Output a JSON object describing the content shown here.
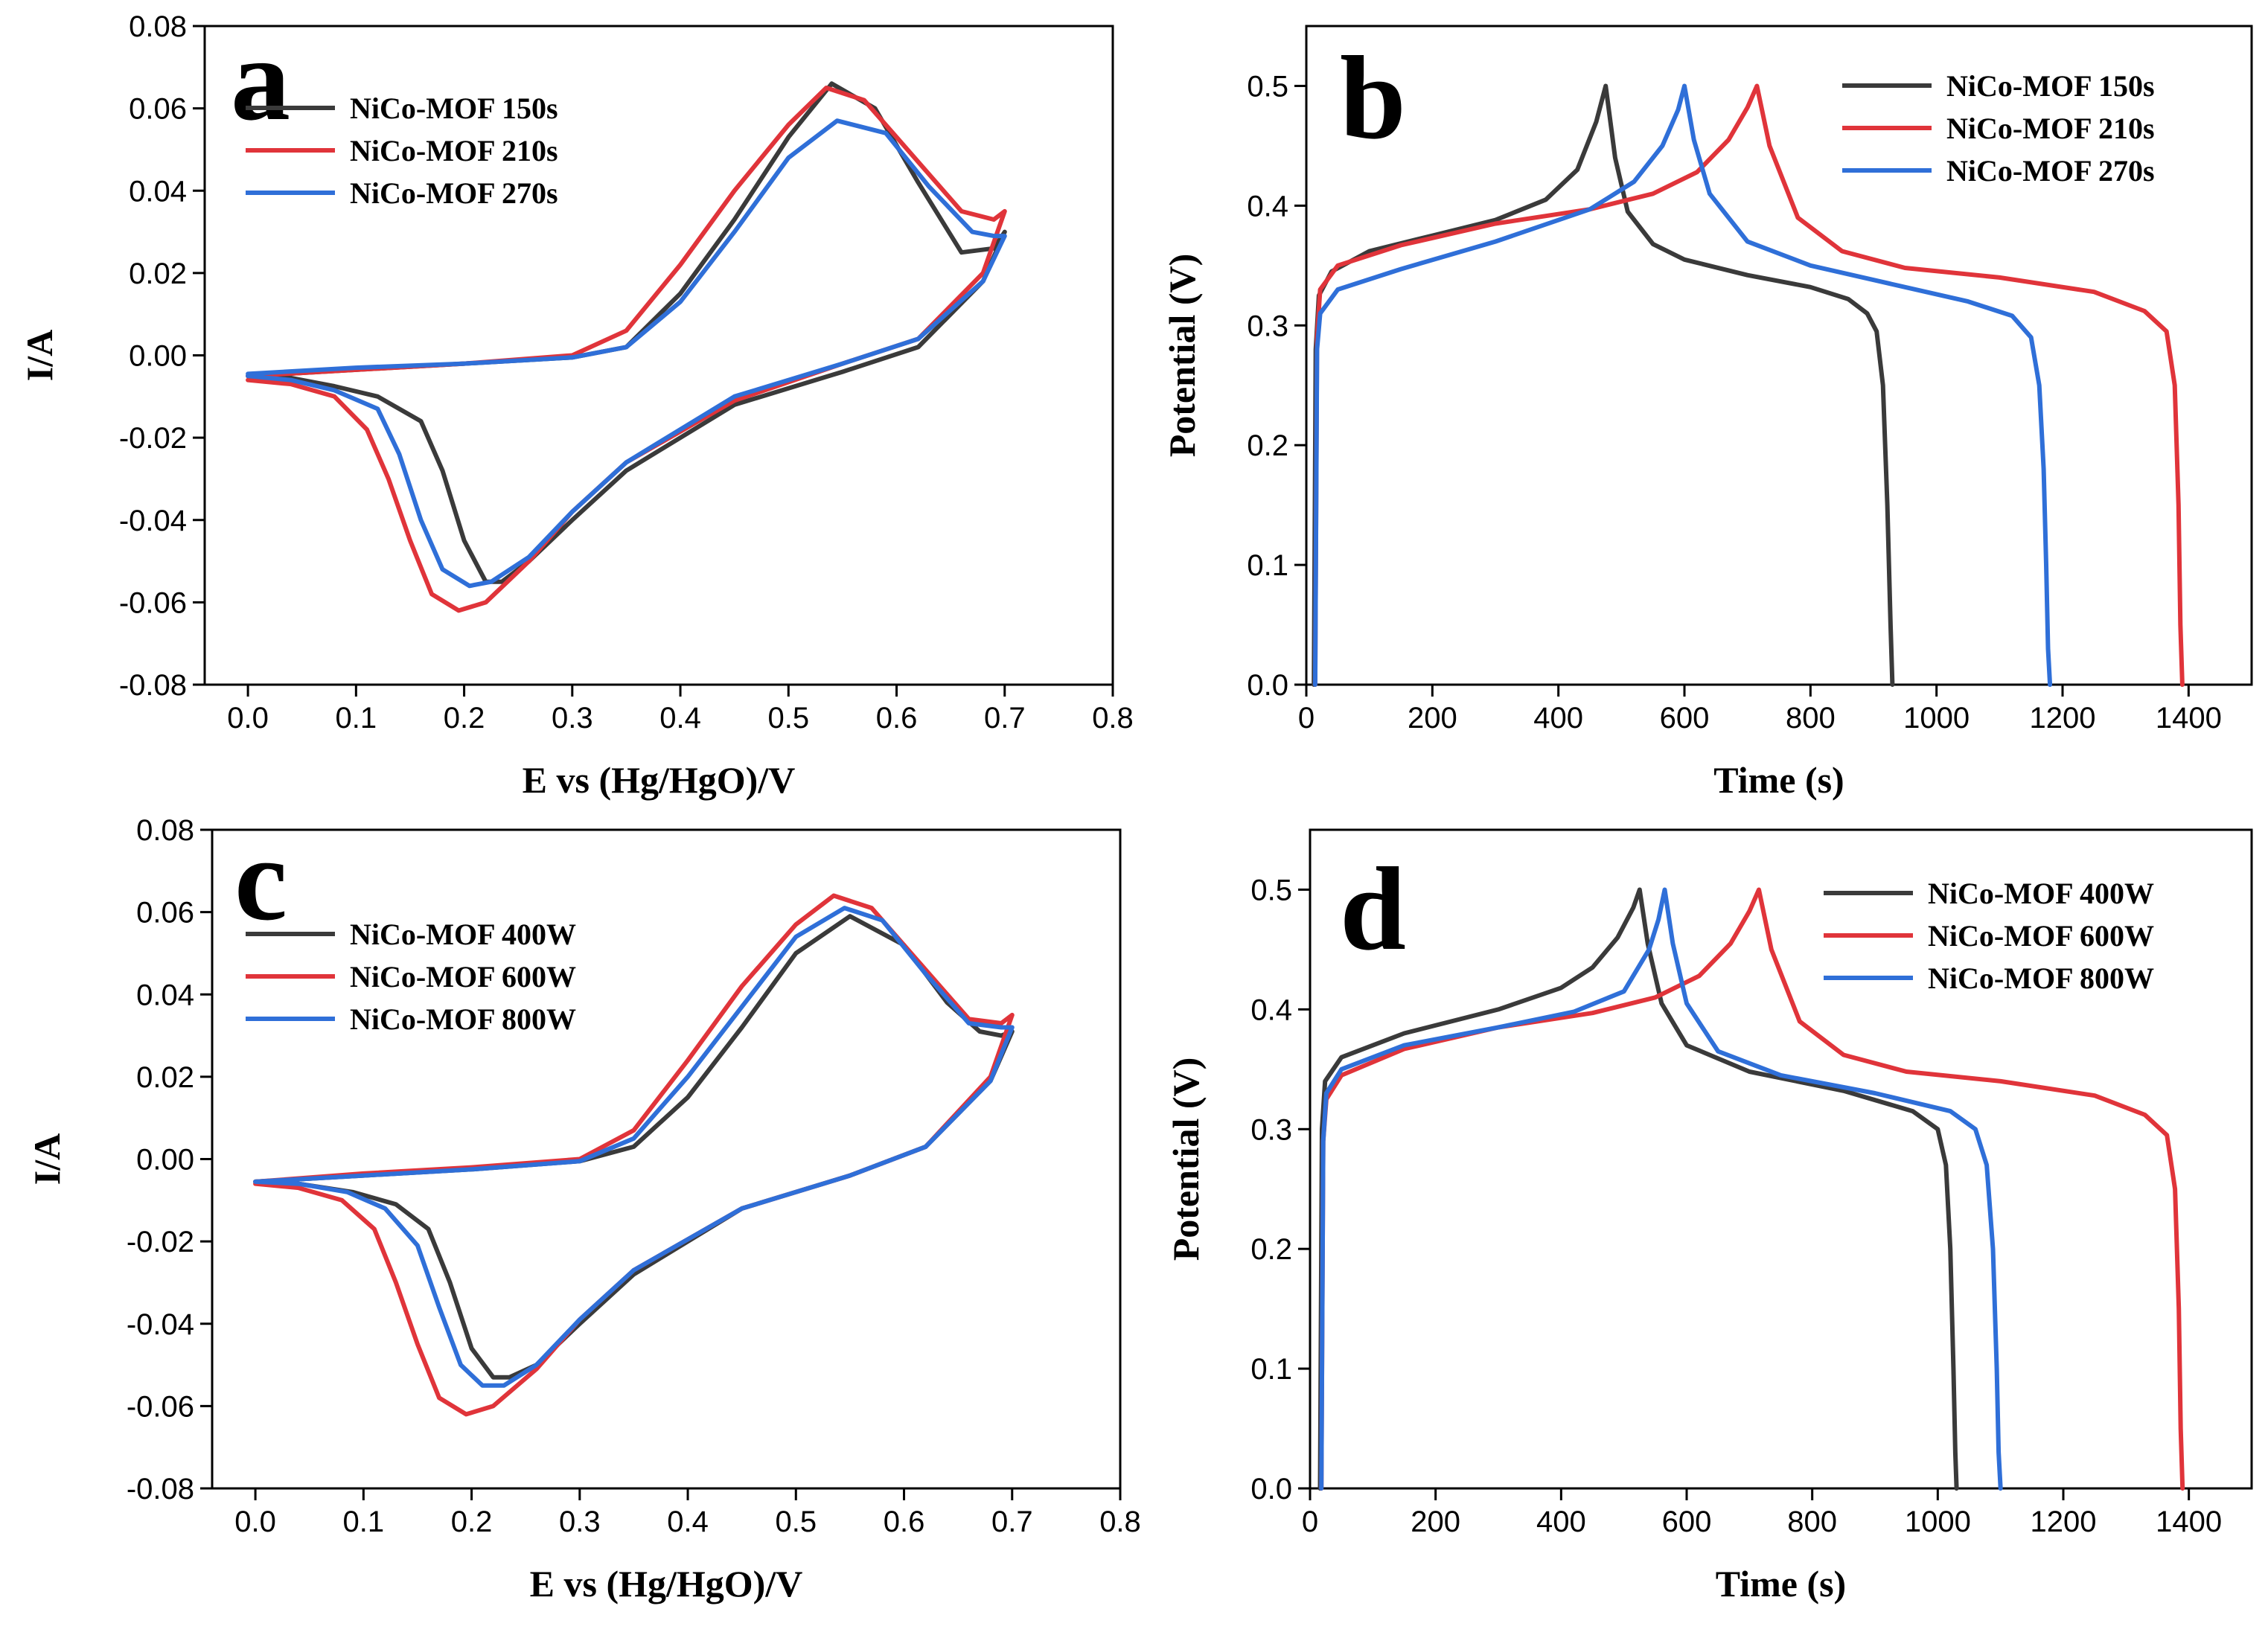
{
  "chart_data": [
    {
      "panel": "a",
      "type": "line",
      "xlabel": "E vs (Hg/HgO)/V",
      "ylabel": "I/A",
      "xlim": [
        -0.04,
        0.8
      ],
      "ylim": [
        -0.08,
        0.08
      ],
      "xticks": [
        0.0,
        0.1,
        0.2,
        0.3,
        0.4,
        0.5,
        0.6,
        0.7,
        0.8
      ],
      "yticks": [
        -0.08,
        -0.06,
        -0.04,
        -0.02,
        0.0,
        0.02,
        0.04,
        0.06,
        0.08
      ],
      "xtick_labels": [
        "0.0",
        "0.1",
        "0.2",
        "0.3",
        "0.4",
        "0.5",
        "0.6",
        "0.7",
        "0.8"
      ],
      "ytick_labels": [
        "-0.08",
        "-0.06",
        "-0.04",
        "-0.02",
        "0.00",
        "0.02",
        "0.04",
        "0.06",
        "0.08"
      ],
      "legend_position": "top-left",
      "grid": false,
      "series": [
        {
          "name": "NiCo-MOF 150s",
          "color": "#3a3a3a",
          "x": [
            0.0,
            0.1,
            0.2,
            0.3,
            0.35,
            0.4,
            0.45,
            0.5,
            0.54,
            0.58,
            0.62,
            0.66,
            0.69,
            0.7,
            0.68,
            0.62,
            0.55,
            0.45,
            0.35,
            0.3,
            0.26,
            0.235,
            0.22,
            0.2,
            0.18,
            0.16,
            0.12,
            0.08,
            0.04,
            0.0
          ],
          "y": [
            -0.005,
            -0.0035,
            -0.002,
            -0.0005,
            0.002,
            0.015,
            0.033,
            0.053,
            0.066,
            0.06,
            0.042,
            0.025,
            0.026,
            0.03,
            0.018,
            0.002,
            -0.004,
            -0.012,
            -0.028,
            -0.04,
            -0.05,
            -0.055,
            -0.055,
            -0.045,
            -0.028,
            -0.016,
            -0.01,
            -0.0075,
            -0.0055,
            -0.005
          ]
        },
        {
          "name": "NiCo-MOF 210s",
          "color": "#e0343a",
          "x": [
            0.0,
            0.1,
            0.2,
            0.3,
            0.35,
            0.4,
            0.45,
            0.5,
            0.535,
            0.57,
            0.61,
            0.66,
            0.69,
            0.7,
            0.68,
            0.62,
            0.55,
            0.45,
            0.35,
            0.3,
            0.26,
            0.22,
            0.195,
            0.17,
            0.15,
            0.13,
            0.11,
            0.08,
            0.04,
            0.0
          ],
          "y": [
            -0.005,
            -0.0035,
            -0.002,
            0.0,
            0.006,
            0.022,
            0.04,
            0.056,
            0.065,
            0.062,
            0.05,
            0.035,
            0.033,
            0.035,
            0.02,
            0.004,
            -0.002,
            -0.011,
            -0.026,
            -0.038,
            -0.05,
            -0.06,
            -0.062,
            -0.058,
            -0.045,
            -0.03,
            -0.018,
            -0.01,
            -0.007,
            -0.006
          ]
        },
        {
          "name": "NiCo-MOF 270s",
          "color": "#2f6fd8",
          "x": [
            0.0,
            0.1,
            0.2,
            0.3,
            0.35,
            0.4,
            0.45,
            0.5,
            0.545,
            0.59,
            0.63,
            0.67,
            0.69,
            0.7,
            0.68,
            0.62,
            0.55,
            0.45,
            0.35,
            0.3,
            0.26,
            0.225,
            0.205,
            0.18,
            0.16,
            0.14,
            0.12,
            0.08,
            0.04,
            0.0
          ],
          "y": [
            -0.0045,
            -0.003,
            -0.002,
            -0.0005,
            0.002,
            0.013,
            0.03,
            0.048,
            0.057,
            0.054,
            0.041,
            0.03,
            0.029,
            0.029,
            0.018,
            0.004,
            -0.002,
            -0.01,
            -0.026,
            -0.038,
            -0.049,
            -0.055,
            -0.056,
            -0.052,
            -0.04,
            -0.024,
            -0.013,
            -0.0085,
            -0.006,
            -0.005
          ]
        }
      ]
    },
    {
      "panel": "b",
      "type": "line",
      "xlabel": "Time (s)",
      "ylabel": "Potential (V)",
      "xlim": [
        0,
        1500
      ],
      "ylim": [
        0,
        0.55
      ],
      "xticks": [
        0,
        200,
        400,
        600,
        800,
        1000,
        1200,
        1400
      ],
      "yticks": [
        0.0,
        0.1,
        0.2,
        0.3,
        0.4,
        0.5
      ],
      "xtick_labels": [
        "0",
        "200",
        "400",
        "600",
        "800",
        "1000",
        "1200",
        "1400"
      ],
      "ytick_labels": [
        "0.0",
        "0.1",
        "0.2",
        "0.3",
        "0.4",
        "0.5"
      ],
      "legend_position": "top-right",
      "grid": false,
      "series": [
        {
          "name": "NiCo-MOF 150s",
          "color": "#3a3a3a",
          "x": [
            12,
            15,
            20,
            40,
            100,
            200,
            300,
            380,
            430,
            460,
            475,
            490,
            510,
            550,
            600,
            700,
            800,
            860,
            890,
            905,
            915,
            922,
            927,
            930
          ],
          "y": [
            0.0,
            0.28,
            0.325,
            0.345,
            0.362,
            0.375,
            0.388,
            0.405,
            0.43,
            0.47,
            0.5,
            0.44,
            0.395,
            0.368,
            0.355,
            0.342,
            0.332,
            0.322,
            0.31,
            0.295,
            0.25,
            0.15,
            0.05,
            0.0
          ]
        },
        {
          "name": "NiCo-MOF 210s",
          "color": "#e0343a",
          "x": [
            14,
            17,
            22,
            50,
            150,
            300,
            450,
            550,
            620,
            670,
            700,
            715,
            735,
            780,
            850,
            950,
            1100,
            1250,
            1330,
            1365,
            1378,
            1384,
            1387,
            1390
          ],
          "y": [
            0.0,
            0.29,
            0.33,
            0.35,
            0.367,
            0.385,
            0.397,
            0.41,
            0.428,
            0.455,
            0.482,
            0.5,
            0.45,
            0.39,
            0.362,
            0.348,
            0.34,
            0.328,
            0.312,
            0.295,
            0.25,
            0.15,
            0.05,
            0.0
          ]
        },
        {
          "name": "NiCo-MOF 270s",
          "color": "#2f6fd8",
          "x": [
            14,
            17,
            22,
            50,
            150,
            300,
            450,
            520,
            565,
            590,
            600,
            615,
            640,
            700,
            800,
            950,
            1050,
            1120,
            1150,
            1163,
            1170,
            1174,
            1177,
            1180
          ],
          "y": [
            0.0,
            0.28,
            0.31,
            0.33,
            0.347,
            0.37,
            0.397,
            0.42,
            0.45,
            0.48,
            0.5,
            0.455,
            0.41,
            0.37,
            0.35,
            0.332,
            0.32,
            0.308,
            0.29,
            0.25,
            0.18,
            0.1,
            0.03,
            0.0
          ]
        }
      ]
    },
    {
      "panel": "c",
      "type": "line",
      "xlabel": "E vs (Hg/HgO)/V",
      "ylabel": "I/A",
      "xlim": [
        -0.04,
        0.8
      ],
      "ylim": [
        -0.08,
        0.08
      ],
      "xticks": [
        0.0,
        0.1,
        0.2,
        0.3,
        0.4,
        0.5,
        0.6,
        0.7,
        0.8
      ],
      "yticks": [
        -0.08,
        -0.06,
        -0.04,
        -0.02,
        0.0,
        0.02,
        0.04,
        0.06,
        0.08
      ],
      "xtick_labels": [
        "0.0",
        "0.1",
        "0.2",
        "0.3",
        "0.4",
        "0.5",
        "0.6",
        "0.7",
        "0.8"
      ],
      "ytick_labels": [
        "-0.08",
        "-0.06",
        "-0.04",
        "-0.02",
        "0.00",
        "0.02",
        "0.04",
        "0.06",
        "0.08"
      ],
      "legend_position": "top-left",
      "grid": false,
      "series": [
        {
          "name": "NiCo-MOF 400W",
          "color": "#3a3a3a",
          "x": [
            0.0,
            0.1,
            0.2,
            0.3,
            0.35,
            0.4,
            0.45,
            0.5,
            0.55,
            0.6,
            0.64,
            0.67,
            0.69,
            0.7,
            0.68,
            0.62,
            0.55,
            0.45,
            0.35,
            0.3,
            0.26,
            0.235,
            0.22,
            0.2,
            0.18,
            0.16,
            0.13,
            0.09,
            0.04,
            0.0
          ],
          "y": [
            -0.0055,
            -0.004,
            -0.0025,
            -0.0005,
            0.003,
            0.015,
            0.032,
            0.05,
            0.059,
            0.052,
            0.038,
            0.031,
            0.03,
            0.031,
            0.019,
            0.003,
            -0.004,
            -0.012,
            -0.028,
            -0.04,
            -0.05,
            -0.053,
            -0.053,
            -0.046,
            -0.03,
            -0.017,
            -0.011,
            -0.008,
            -0.006,
            -0.0055
          ]
        },
        {
          "name": "NiCo-MOF 600W",
          "color": "#e0343a",
          "x": [
            0.0,
            0.1,
            0.2,
            0.3,
            0.35,
            0.4,
            0.45,
            0.5,
            0.535,
            0.57,
            0.61,
            0.66,
            0.69,
            0.7,
            0.68,
            0.62,
            0.55,
            0.45,
            0.35,
            0.3,
            0.26,
            0.22,
            0.195,
            0.17,
            0.15,
            0.13,
            0.11,
            0.08,
            0.04,
            0.0
          ],
          "y": [
            -0.0055,
            -0.0035,
            -0.002,
            0.0,
            0.007,
            0.024,
            0.042,
            0.057,
            0.064,
            0.061,
            0.049,
            0.034,
            0.033,
            0.035,
            0.02,
            0.003,
            -0.004,
            -0.012,
            -0.027,
            -0.039,
            -0.051,
            -0.06,
            -0.062,
            -0.058,
            -0.045,
            -0.03,
            -0.017,
            -0.01,
            -0.007,
            -0.006
          ]
        },
        {
          "name": "NiCo-MOF 800W",
          "color": "#2f6fd8",
          "x": [
            0.0,
            0.1,
            0.2,
            0.3,
            0.35,
            0.4,
            0.45,
            0.5,
            0.545,
            0.58,
            0.62,
            0.66,
            0.69,
            0.7,
            0.68,
            0.62,
            0.55,
            0.45,
            0.35,
            0.3,
            0.26,
            0.23,
            0.21,
            0.19,
            0.17,
            0.15,
            0.12,
            0.085,
            0.04,
            0.0
          ],
          "y": [
            -0.0055,
            -0.004,
            -0.0025,
            -0.0005,
            0.005,
            0.02,
            0.037,
            0.054,
            0.061,
            0.058,
            0.045,
            0.033,
            0.032,
            0.032,
            0.019,
            0.003,
            -0.004,
            -0.012,
            -0.027,
            -0.039,
            -0.05,
            -0.055,
            -0.055,
            -0.05,
            -0.036,
            -0.021,
            -0.012,
            -0.008,
            -0.006,
            -0.0055
          ]
        }
      ]
    },
    {
      "panel": "d",
      "type": "line",
      "xlabel": "Time (s)",
      "ylabel": "Potential (V)",
      "xlim": [
        0,
        1500
      ],
      "ylim": [
        0,
        0.55
      ],
      "xticks": [
        0,
        200,
        400,
        600,
        800,
        1000,
        1200,
        1400
      ],
      "yticks": [
        0.0,
        0.1,
        0.2,
        0.3,
        0.4,
        0.5
      ],
      "xtick_labels": [
        "0",
        "200",
        "400",
        "600",
        "800",
        "1000",
        "1200",
        "1400"
      ],
      "ytick_labels": [
        "0.0",
        "0.1",
        "0.2",
        "0.3",
        "0.4",
        "0.5"
      ],
      "legend_position": "top-right",
      "grid": false,
      "series": [
        {
          "name": "NiCo-MOF 400W",
          "color": "#3a3a3a",
          "x": [
            16,
            19,
            24,
            50,
            150,
            300,
            400,
            450,
            490,
            515,
            525,
            538,
            560,
            600,
            700,
            850,
            960,
            1000,
            1013,
            1020,
            1025,
            1028,
            1030
          ],
          "y": [
            0.0,
            0.3,
            0.34,
            0.36,
            0.38,
            0.4,
            0.418,
            0.435,
            0.46,
            0.485,
            0.5,
            0.455,
            0.405,
            0.37,
            0.348,
            0.332,
            0.315,
            0.3,
            0.27,
            0.2,
            0.1,
            0.03,
            0.0
          ]
        },
        {
          "name": "NiCo-MOF 600W",
          "color": "#e0343a",
          "x": [
            18,
            21,
            26,
            50,
            150,
            300,
            450,
            550,
            620,
            670,
            700,
            715,
            735,
            780,
            850,
            950,
            1100,
            1250,
            1330,
            1365,
            1378,
            1384,
            1387,
            1390
          ],
          "y": [
            0.0,
            0.29,
            0.325,
            0.345,
            0.367,
            0.385,
            0.397,
            0.41,
            0.428,
            0.455,
            0.482,
            0.5,
            0.45,
            0.39,
            0.362,
            0.348,
            0.34,
            0.328,
            0.312,
            0.295,
            0.25,
            0.15,
            0.05,
            0.0
          ]
        },
        {
          "name": "NiCo-MOF 800W",
          "color": "#2f6fd8",
          "x": [
            18,
            21,
            26,
            50,
            150,
            300,
            420,
            500,
            540,
            555,
            565,
            578,
            600,
            650,
            750,
            900,
            1020,
            1060,
            1078,
            1088,
            1094,
            1097,
            1100
          ],
          "y": [
            0.0,
            0.29,
            0.33,
            0.35,
            0.37,
            0.385,
            0.398,
            0.415,
            0.45,
            0.475,
            0.5,
            0.455,
            0.405,
            0.365,
            0.345,
            0.33,
            0.315,
            0.3,
            0.27,
            0.2,
            0.1,
            0.03,
            0.0
          ]
        }
      ]
    }
  ]
}
